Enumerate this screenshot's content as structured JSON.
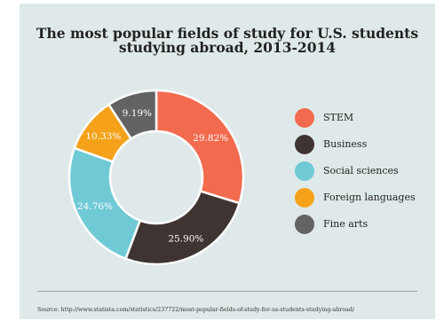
{
  "title": {
    "line1": "The most popular fields of study for U.S. students",
    "line2": "studying abroad, 2013-2014"
  },
  "chart_data": {
    "type": "pie",
    "donut": true,
    "categories": [
      "STEM",
      "Business",
      "Social sciences",
      "Foreign languages",
      "Fine arts"
    ],
    "values": [
      29.82,
      25.9,
      24.76,
      10.33,
      9.19
    ],
    "labels": [
      "29.82%",
      "25.90%",
      "24.76%",
      "10.33%",
      "9.19%"
    ],
    "colors": [
      "#f26b4f",
      "#3e3432",
      "#6fcad6",
      "#f5a21a",
      "#646363"
    ],
    "label_colors": [
      "#ffffff",
      "#ffffff",
      "#ffffff",
      "#ffffff",
      "#ffffff"
    ],
    "legend_position": "right"
  },
  "legend": {
    "items": [
      {
        "label": "STEM",
        "color": "#f26b4f"
      },
      {
        "label": "Business",
        "color": "#3e3432"
      },
      {
        "label": "Social sciences",
        "color": "#6fcad6"
      },
      {
        "label": "Foreign languages",
        "color": "#f5a21a"
      },
      {
        "label": "Fine arts",
        "color": "#646363"
      }
    ]
  },
  "source": "Source: http://www.statista.com/statistics/237722/most-popular-fields-of-study-for-us-students-studying-abroad/",
  "colors": {
    "background": "#dfe9e9",
    "text": "#222222"
  }
}
